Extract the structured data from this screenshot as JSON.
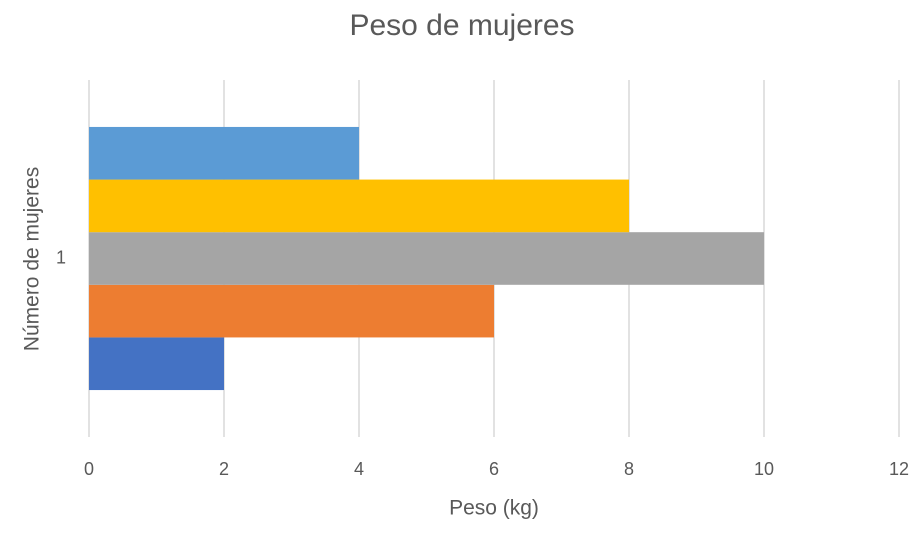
{
  "chart_data": {
    "type": "bar",
    "orientation": "horizontal",
    "title": "Peso de mujeres",
    "x_label": "Peso (kg)",
    "y_label": "Número de mujeres",
    "categories": [
      "1"
    ],
    "series": [
      {
        "color": "#4472c4",
        "values": [
          2
        ]
      },
      {
        "color": "#ed7d31",
        "values": [
          6
        ]
      },
      {
        "color": "#a5a5a5",
        "values": [
          10
        ]
      },
      {
        "color": "#ffc000",
        "values": [
          8
        ]
      },
      {
        "color": "#5b9bd5",
        "values": [
          4
        ]
      }
    ],
    "xlim": [
      0,
      12
    ],
    "xticks": [
      0,
      2,
      4,
      6,
      8,
      10,
      12
    ],
    "grid": true
  }
}
